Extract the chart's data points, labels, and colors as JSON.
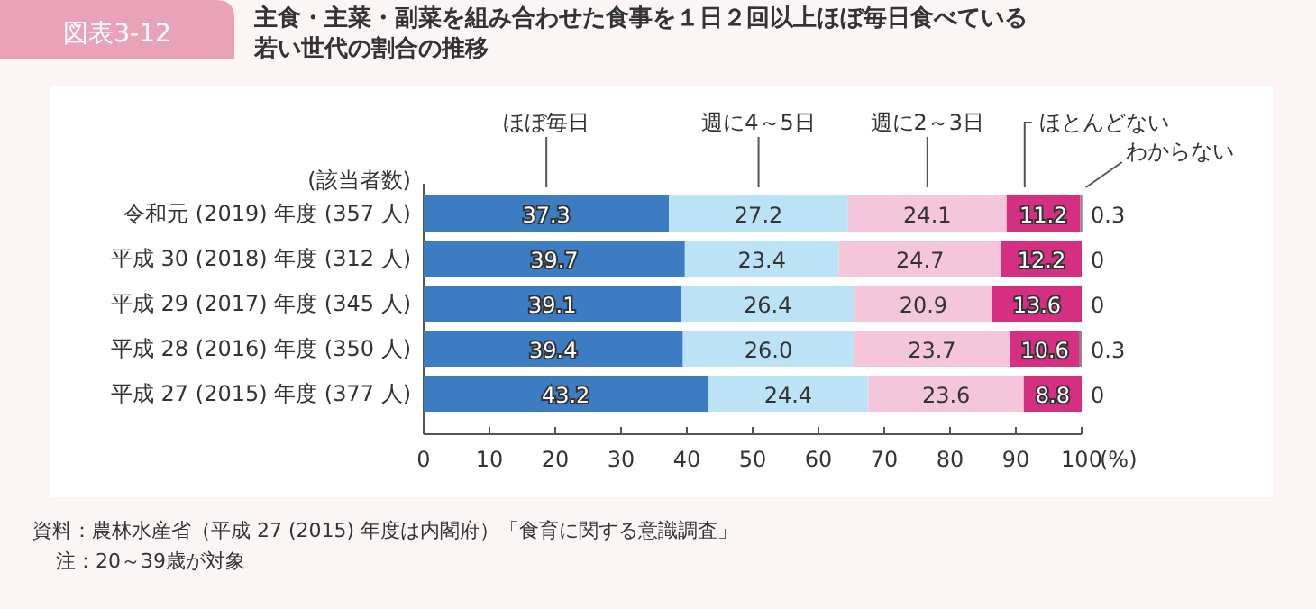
{
  "chart_data": {
    "type": "bar",
    "orientation": "horizontal",
    "stacked": true,
    "title": "主食・主菜・副菜を組み合わせた食事を１日２回以上ほぼ毎日食べている若い世代の割合の推移",
    "xlabel": "(%)",
    "ylabel": "(該当者数)",
    "categories": [
      "令和元 (2019) 年度 (357 人)",
      "平成 30 (2018) 年度 (312 人)",
      "平成 29 (2017) 年度 (345 人)",
      "平成 28 (2016) 年度 (350 人)",
      "平成 27 (2015) 年度 (377 人)"
    ],
    "series": [
      {
        "name": "ほぼ毎日",
        "color": "#3b7cc2",
        "values": [
          37.3,
          39.7,
          39.1,
          39.4,
          43.2
        ],
        "value_labels": [
          "37.3",
          "39.7",
          "39.1",
          "39.4",
          "43.2"
        ]
      },
      {
        "name": "週に4～5日",
        "color": "#bce2f6",
        "values": [
          27.2,
          23.4,
          26.4,
          26.0,
          24.4
        ],
        "value_labels": [
          "27.2",
          "23.4",
          "26.4",
          "26.0",
          "24.4"
        ]
      },
      {
        "name": "週に2～3日",
        "color": "#f4c6dc",
        "values": [
          24.1,
          24.7,
          20.9,
          23.7,
          23.6
        ],
        "value_labels": [
          "24.1",
          "24.7",
          "20.9",
          "23.7",
          "23.6"
        ]
      },
      {
        "name": "ほとんどない",
        "color": "#d42f80",
        "values": [
          11.2,
          12.2,
          13.6,
          10.6,
          8.8
        ],
        "value_labels": [
          "11.2",
          "12.2",
          "13.6",
          "10.6",
          "8.8"
        ]
      },
      {
        "name": "わからない",
        "color": "#8a8a8a",
        "values": [
          0.3,
          0,
          0,
          0.3,
          0
        ],
        "value_labels": [
          "0.3",
          "0",
          "0",
          "0.3",
          "0"
        ]
      }
    ],
    "xlim": [
      0,
      100
    ],
    "xticks": [
      0,
      10,
      20,
      30,
      40,
      50,
      60,
      70,
      80,
      90,
      100
    ],
    "annotations": [
      "図表3-12",
      "資料：農林水産省（平成 27 (2015) 年度は内閣府）「食育に関する意識調査」",
      "注：20～39歳が対象"
    ]
  }
}
